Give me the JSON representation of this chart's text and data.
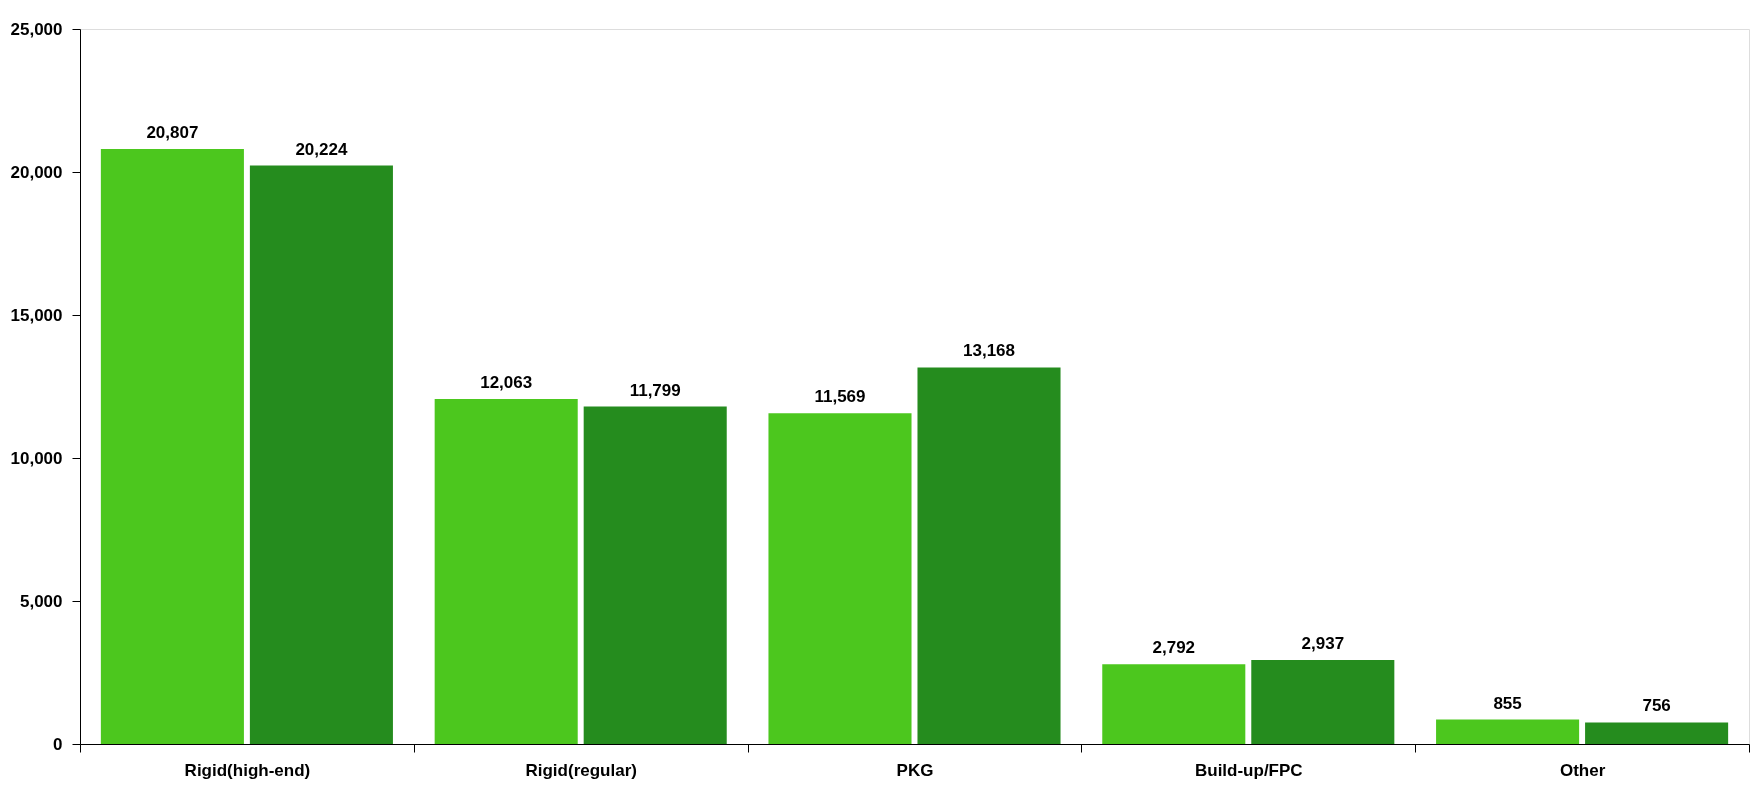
{
  "chart_data": {
    "type": "bar",
    "categories": [
      "Rigid(high-end)",
      "Rigid(regular)",
      "PKG",
      "Build-up/FPC",
      "Other"
    ],
    "series": [
      {
        "color": "#4cc71e",
        "values": [
          20807,
          12063,
          11569,
          2792,
          855
        ],
        "value_labels": [
          "20,807",
          "12,063",
          "11,569",
          "2,792",
          "855"
        ]
      },
      {
        "color": "#258c1e",
        "values": [
          20224,
          11799,
          13168,
          2937,
          756
        ],
        "value_labels": [
          "20,224",
          "11,799",
          "13,168",
          "2,937",
          "756"
        ]
      }
    ],
    "ylim": [
      0,
      25000
    ],
    "yticks": [
      0,
      {
        "value": 5000,
        "label": "5,000"
      },
      {
        "value": 10000,
        "label": "10,000"
      },
      {
        "value": 15000,
        "label": "15,000"
      },
      {
        "value": 20000,
        "label": "20,000"
      },
      {
        "value": 25000,
        "label": "25,000"
      }
    ],
    "grid": false,
    "legend": false
  }
}
